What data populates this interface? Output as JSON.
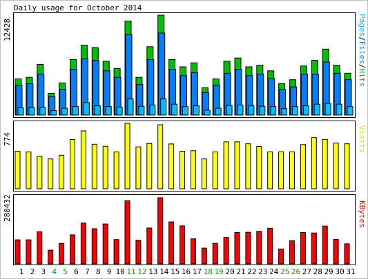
{
  "title": "Daily usage for October 2014",
  "colors": {
    "background": "#ffffff",
    "frame_border": "#c0c0c0",
    "panel_border": "#000000",
    "hits": "#00c000",
    "files": "#0080ff",
    "pages": "#00c0ff",
    "visits": "#ffff00",
    "kbytes": "#ff0000",
    "bar_outline": "#000000",
    "weekday_label": "#000000",
    "weekend_label": "#00a000",
    "text": "#000000"
  },
  "chart_data": [
    {
      "type": "bar",
      "title": "Daily usage for October 2014",
      "categories": [
        "1",
        "2",
        "3",
        "4",
        "5",
        "6",
        "7",
        "8",
        "9",
        "10",
        "11",
        "12",
        "13",
        "14",
        "15",
        "16",
        "17",
        "18",
        "19",
        "20",
        "21",
        "22",
        "23",
        "24",
        "25",
        "26",
        "27",
        "28",
        "29",
        "30",
        "31"
      ],
      "weekend": [
        "4",
        "5",
        "11",
        "12",
        "18",
        "19",
        "25",
        "26"
      ],
      "ylabel_max": "12428",
      "ymax": 12428,
      "right_label": {
        "pages": "Pages",
        "sep1": "/",
        "files": "Files",
        "sep2": "/",
        "hits": "Hits"
      },
      "series": [
        {
          "name": "Hits",
          "values": [
            4500,
            4700,
            6300,
            2700,
            4000,
            6900,
            8700,
            8400,
            6700,
            5800,
            11700,
            4700,
            8500,
            12428,
            6900,
            6000,
            6500,
            3400,
            4500,
            6700,
            7100,
            6000,
            6200,
            5500,
            3900,
            4400,
            6100,
            6800,
            8200,
            6200,
            5200
          ]
        },
        {
          "name": "Files",
          "values": [
            3700,
            3900,
            5100,
            2300,
            3200,
            5700,
            7000,
            6800,
            5500,
            4700,
            10000,
            3800,
            6900,
            10200,
            5700,
            4900,
            5300,
            2800,
            3700,
            5200,
            5700,
            4900,
            5100,
            4500,
            3200,
            3500,
            5100,
            5100,
            6600,
            5200,
            4400
          ]
        },
        {
          "name": "Pages",
          "values": [
            900,
            950,
            950,
            550,
            850,
            1050,
            1550,
            1150,
            1050,
            1000,
            2000,
            1100,
            1250,
            2000,
            1350,
            1050,
            1150,
            600,
            850,
            1200,
            1250,
            1150,
            1100,
            1050,
            800,
            1050,
            1150,
            1350,
            1450,
            1350,
            1050
          ]
        }
      ]
    },
    {
      "type": "bar",
      "categories": [
        "1",
        "2",
        "3",
        "4",
        "5",
        "6",
        "7",
        "8",
        "9",
        "10",
        "11",
        "12",
        "13",
        "14",
        "15",
        "16",
        "17",
        "18",
        "19",
        "20",
        "21",
        "22",
        "23",
        "24",
        "25",
        "26",
        "27",
        "28",
        "29",
        "30",
        "31"
      ],
      "ylabel_max": "774",
      "ymax": 774,
      "right_label": "Visits",
      "series": [
        {
          "name": "Visits",
          "values": [
            443,
            435,
            383,
            353,
            397,
            582,
            684,
            527,
            503,
            435,
            774,
            495,
            536,
            758,
            530,
            443,
            450,
            353,
            435,
            555,
            555,
            532,
            500,
            437,
            437,
            437,
            523,
            605,
            583,
            540,
            532
          ]
        }
      ]
    },
    {
      "type": "bar",
      "categories": [
        "1",
        "2",
        "3",
        "4",
        "5",
        "6",
        "7",
        "8",
        "9",
        "10",
        "11",
        "12",
        "13",
        "14",
        "15",
        "16",
        "17",
        "18",
        "19",
        "20",
        "21",
        "22",
        "23",
        "24",
        "25",
        "26",
        "27",
        "28",
        "29",
        "30",
        "31"
      ],
      "ylabel_max": "280432",
      "ymax": 280432,
      "right_label": "KBytes",
      "series": [
        {
          "name": "KBytes",
          "values": [
            102000,
            102000,
            136000,
            58000,
            87000,
            123000,
            173000,
            149000,
            169000,
            103000,
            268000,
            100000,
            152000,
            280432,
            178000,
            161000,
            106000,
            67000,
            87000,
            112000,
            133000,
            134000,
            138000,
            151000,
            63000,
            98000,
            133000,
            131000,
            160000,
            104000,
            85000
          ]
        }
      ]
    }
  ]
}
